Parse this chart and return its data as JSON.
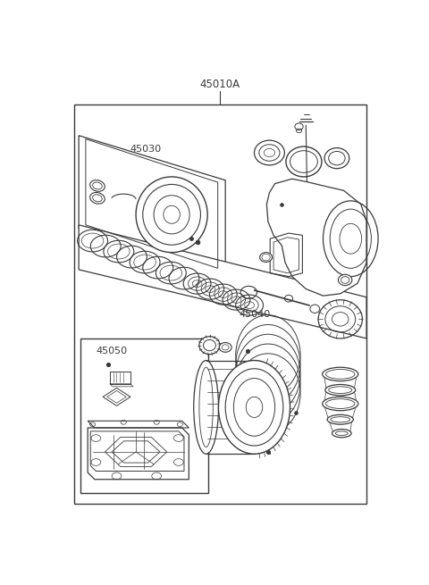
{
  "title": "45010A",
  "bg_color": "#ffffff",
  "line_color": "#3a3a3a",
  "label_45030": "45030",
  "label_45040": "45040",
  "label_45050": "45050",
  "title_fontsize": 8.5,
  "label_fontsize": 8,
  "fig_width": 4.8,
  "fig_height": 6.55,
  "dpi": 100
}
